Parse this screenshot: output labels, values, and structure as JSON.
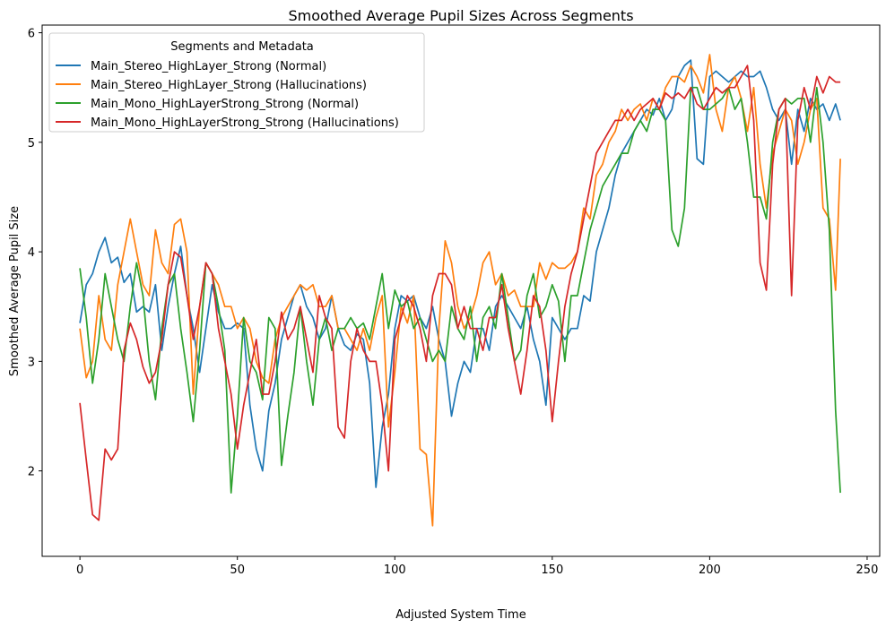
{
  "chart_data": {
    "type": "line",
    "title": "Smoothed Average Pupil Sizes Across Segments",
    "xlabel": "Adjusted System Time",
    "ylabel": "Smoothed Average Pupil Size",
    "xlim": [
      -12,
      254
    ],
    "ylim": [
      1.22,
      6.07
    ],
    "xticks": [
      0,
      50,
      100,
      150,
      200,
      250
    ],
    "yticks": [
      2,
      3,
      4,
      5,
      6
    ],
    "grid": false,
    "legend": {
      "title": "Segments and Metadata",
      "placement": "top-left"
    },
    "series": [
      {
        "name": "Main_Stereo_HighLayer_Strong (Normal)",
        "color": "#1f77b4",
        "x": [
          0,
          2,
          4,
          6,
          8,
          10,
          12,
          14,
          16,
          18,
          20,
          22,
          24,
          26,
          28,
          30,
          32,
          34,
          36,
          38,
          40,
          42,
          44,
          46,
          48,
          50,
          52,
          54,
          56,
          58,
          60,
          62,
          64,
          66,
          68,
          70,
          72,
          74,
          76,
          78,
          80,
          82,
          84,
          86,
          88,
          90,
          92,
          94,
          96,
          98,
          100,
          102,
          104,
          106,
          108,
          110,
          112,
          114,
          116,
          118,
          120,
          122,
          124,
          126,
          128,
          130,
          132,
          134,
          136,
          138,
          140,
          142,
          144,
          146,
          148,
          150,
          152,
          154,
          156,
          158,
          160,
          162,
          164,
          166,
          168,
          170,
          172,
          174,
          176,
          178,
          180,
          182,
          184,
          186,
          188,
          190,
          192,
          194,
          196,
          198,
          200,
          202,
          204,
          206,
          208,
          210,
          212,
          214,
          216,
          218,
          220,
          222,
          224,
          226,
          228,
          230,
          232,
          234,
          236,
          238,
          240,
          241.5
        ],
        "values": [
          3.35,
          3.7,
          3.8,
          4.0,
          4.13,
          3.9,
          3.95,
          3.72,
          3.8,
          3.45,
          3.5,
          3.45,
          3.7,
          3.1,
          3.5,
          3.8,
          4.05,
          3.6,
          3.3,
          2.9,
          3.3,
          3.7,
          3.45,
          3.3,
          3.3,
          3.35,
          3.3,
          2.6,
          2.2,
          2.0,
          2.55,
          2.8,
          3.2,
          3.4,
          3.6,
          3.7,
          3.5,
          3.4,
          3.2,
          3.3,
          3.6,
          3.3,
          3.15,
          3.1,
          3.25,
          3.2,
          2.8,
          1.85,
          2.4,
          2.7,
          3.3,
          3.6,
          3.55,
          3.6,
          3.4,
          3.3,
          3.5,
          3.2,
          3.0,
          2.5,
          2.8,
          3.0,
          2.9,
          3.3,
          3.3,
          3.1,
          3.5,
          3.6,
          3.5,
          3.4,
          3.3,
          3.5,
          3.2,
          3.0,
          2.6,
          3.4,
          3.3,
          3.2,
          3.3,
          3.3,
          3.6,
          3.55,
          4.0,
          4.2,
          4.4,
          4.7,
          4.9,
          5.0,
          5.1,
          5.2,
          5.3,
          5.25,
          5.4,
          5.2,
          5.3,
          5.6,
          5.7,
          5.75,
          4.85,
          4.8,
          5.6,
          5.65,
          5.6,
          5.55,
          5.6,
          5.65,
          5.6,
          5.6,
          5.65,
          5.5,
          5.3,
          5.2,
          5.3,
          4.8,
          5.3,
          5.1,
          5.4,
          5.3,
          5.35,
          5.2,
          5.35,
          5.2
        ]
      },
      {
        "name": "Main_Stereo_HighLayer_Strong (Hallucinations)",
        "color": "#ff7f0e",
        "x": [
          0,
          2,
          4,
          6,
          8,
          10,
          12,
          14,
          16,
          18,
          20,
          22,
          24,
          26,
          28,
          30,
          32,
          34,
          36,
          38,
          40,
          42,
          44,
          46,
          48,
          50,
          52,
          54,
          56,
          58,
          60,
          62,
          64,
          66,
          68,
          70,
          72,
          74,
          76,
          78,
          80,
          82,
          84,
          86,
          88,
          90,
          92,
          94,
          96,
          98,
          100,
          102,
          104,
          106,
          108,
          110,
          112,
          114,
          116,
          118,
          120,
          122,
          124,
          126,
          128,
          130,
          132,
          134,
          136,
          138,
          140,
          142,
          144,
          146,
          148,
          150,
          152,
          154,
          156,
          158,
          160,
          162,
          164,
          166,
          168,
          170,
          172,
          174,
          176,
          178,
          180,
          182,
          184,
          186,
          188,
          190,
          192,
          194,
          196,
          198,
          200,
          202,
          204,
          206,
          208,
          210,
          212,
          214,
          216,
          218,
          220,
          222,
          224,
          226,
          228,
          230,
          232,
          234,
          236,
          238,
          240,
          241.5
        ],
        "values": [
          3.3,
          2.85,
          3.0,
          3.6,
          3.2,
          3.1,
          3.7,
          4.0,
          4.3,
          4.0,
          3.7,
          3.6,
          4.2,
          3.9,
          3.8,
          4.25,
          4.3,
          4.0,
          2.7,
          3.5,
          3.9,
          3.8,
          3.7,
          3.5,
          3.5,
          3.3,
          3.4,
          3.3,
          3.0,
          2.85,
          2.8,
          3.2,
          3.4,
          3.5,
          3.6,
          3.7,
          3.65,
          3.7,
          3.5,
          3.5,
          3.6,
          3.3,
          3.3,
          3.2,
          3.1,
          3.3,
          3.1,
          3.4,
          3.6,
          2.4,
          2.9,
          3.5,
          3.35,
          3.6,
          2.2,
          2.15,
          1.5,
          3.3,
          4.1,
          3.9,
          3.5,
          3.3,
          3.4,
          3.6,
          3.9,
          4.0,
          3.7,
          3.8,
          3.6,
          3.65,
          3.5,
          3.5,
          3.5,
          3.9,
          3.75,
          3.9,
          3.85,
          3.85,
          3.9,
          4.0,
          4.4,
          4.3,
          4.7,
          4.8,
          5.0,
          5.1,
          5.3,
          5.2,
          5.3,
          5.35,
          5.2,
          5.4,
          5.3,
          5.5,
          5.6,
          5.6,
          5.55,
          5.7,
          5.6,
          5.45,
          5.8,
          5.3,
          5.1,
          5.5,
          5.6,
          5.4,
          5.1,
          5.5,
          4.8,
          4.4,
          4.9,
          5.1,
          5.3,
          5.2,
          4.8,
          5.0,
          5.3,
          5.4,
          4.4,
          4.3,
          3.65,
          4.85
        ]
      },
      {
        "name": "Main_Mono_HighLayerStrong_Strong (Normal)",
        "color": "#2ca02c",
        "x": [
          0,
          2,
          4,
          6,
          8,
          10,
          12,
          14,
          16,
          18,
          20,
          22,
          24,
          26,
          28,
          30,
          32,
          34,
          36,
          38,
          40,
          42,
          44,
          46,
          48,
          50,
          52,
          54,
          56,
          58,
          60,
          62,
          64,
          66,
          68,
          70,
          72,
          74,
          76,
          78,
          80,
          82,
          84,
          86,
          88,
          90,
          92,
          94,
          96,
          98,
          100,
          102,
          104,
          106,
          108,
          110,
          112,
          114,
          116,
          118,
          120,
          122,
          124,
          126,
          128,
          130,
          132,
          134,
          136,
          138,
          140,
          142,
          144,
          146,
          148,
          150,
          152,
          154,
          156,
          158,
          160,
          162,
          164,
          166,
          168,
          170,
          172,
          174,
          176,
          178,
          180,
          182,
          184,
          186,
          188,
          190,
          192,
          194,
          196,
          198,
          200,
          202,
          204,
          206,
          208,
          210,
          212,
          214,
          216,
          218,
          220,
          222,
          224,
          226,
          228,
          230,
          232,
          234,
          236,
          238,
          240,
          241.5
        ],
        "values": [
          3.85,
          3.4,
          2.8,
          3.2,
          3.8,
          3.5,
          3.2,
          3.0,
          3.5,
          3.9,
          3.6,
          3.0,
          2.65,
          3.3,
          3.7,
          3.8,
          3.3,
          2.9,
          2.45,
          3.1,
          3.9,
          3.8,
          3.5,
          3.1,
          1.8,
          2.5,
          3.4,
          3.0,
          2.9,
          2.65,
          3.4,
          3.3,
          2.05,
          2.5,
          2.9,
          3.5,
          3.0,
          2.6,
          3.2,
          3.4,
          3.1,
          3.3,
          3.3,
          3.4,
          3.3,
          3.35,
          3.2,
          3.5,
          3.8,
          3.3,
          3.65,
          3.5,
          3.55,
          3.3,
          3.4,
          3.2,
          3.0,
          3.1,
          3.0,
          3.5,
          3.3,
          3.2,
          3.5,
          3.0,
          3.4,
          3.5,
          3.3,
          3.8,
          3.4,
          3.0,
          3.1,
          3.6,
          3.8,
          3.4,
          3.5,
          3.7,
          3.55,
          3.0,
          3.6,
          3.6,
          3.9,
          4.2,
          4.4,
          4.6,
          4.7,
          4.8,
          4.9,
          4.9,
          5.1,
          5.2,
          5.1,
          5.3,
          5.3,
          5.2,
          4.2,
          4.05,
          4.4,
          5.5,
          5.5,
          5.3,
          5.3,
          5.35,
          5.4,
          5.5,
          5.3,
          5.4,
          5.0,
          4.5,
          4.5,
          4.3,
          5.0,
          5.3,
          5.4,
          5.35,
          5.4,
          5.4,
          5.0,
          5.5,
          5.0,
          4.2,
          2.55,
          1.8
        ]
      },
      {
        "name": "Main_Mono_HighLayerStrong_Strong (Hallucinations)",
        "color": "#d62728",
        "x": [
          0,
          2,
          4,
          6,
          8,
          10,
          12,
          14,
          16,
          18,
          20,
          22,
          24,
          26,
          28,
          30,
          32,
          34,
          36,
          38,
          40,
          42,
          44,
          46,
          48,
          50,
          52,
          54,
          56,
          58,
          60,
          62,
          64,
          66,
          68,
          70,
          72,
          74,
          76,
          78,
          80,
          82,
          84,
          86,
          88,
          90,
          92,
          94,
          96,
          98,
          100,
          102,
          104,
          106,
          108,
          110,
          112,
          114,
          116,
          118,
          120,
          122,
          124,
          126,
          128,
          130,
          132,
          134,
          136,
          138,
          140,
          142,
          144,
          146,
          148,
          150,
          152,
          154,
          156,
          158,
          160,
          162,
          164,
          166,
          168,
          170,
          172,
          174,
          176,
          178,
          180,
          182,
          184,
          186,
          188,
          190,
          192,
          194,
          196,
          198,
          200,
          202,
          204,
          206,
          208,
          210,
          212,
          214,
          216,
          218,
          220,
          222,
          224,
          226,
          228,
          230,
          232,
          234,
          236,
          238,
          240,
          241.5
        ],
        "values": [
          2.62,
          2.1,
          1.6,
          1.55,
          2.2,
          2.1,
          2.2,
          3.1,
          3.35,
          3.2,
          2.95,
          2.8,
          2.9,
          3.2,
          3.7,
          4.0,
          3.95,
          3.6,
          3.2,
          3.5,
          3.9,
          3.8,
          3.3,
          3.0,
          2.7,
          2.2,
          2.6,
          2.9,
          3.2,
          2.7,
          2.7,
          3.0,
          3.45,
          3.2,
          3.3,
          3.5,
          3.2,
          2.9,
          3.6,
          3.4,
          3.3,
          2.4,
          2.3,
          3.0,
          3.3,
          3.1,
          3.0,
          3.0,
          2.6,
          2.0,
          3.2,
          3.4,
          3.6,
          3.5,
          3.3,
          3.0,
          3.6,
          3.8,
          3.8,
          3.7,
          3.3,
          3.5,
          3.3,
          3.3,
          3.1,
          3.4,
          3.4,
          3.7,
          3.3,
          3.0,
          2.7,
          3.1,
          3.6,
          3.5,
          3.1,
          2.45,
          3.0,
          3.5,
          3.8,
          4.0,
          4.3,
          4.6,
          4.9,
          5.0,
          5.1,
          5.2,
          5.2,
          5.3,
          5.2,
          5.3,
          5.35,
          5.4,
          5.3,
          5.45,
          5.4,
          5.45,
          5.4,
          5.5,
          5.35,
          5.3,
          5.4,
          5.5,
          5.45,
          5.5,
          5.5,
          5.6,
          5.7,
          5.2,
          3.9,
          3.65,
          4.8,
          5.3,
          5.4,
          3.6,
          5.2,
          5.5,
          5.3,
          5.6,
          5.45,
          5.6,
          5.55,
          5.55
        ]
      }
    ]
  }
}
